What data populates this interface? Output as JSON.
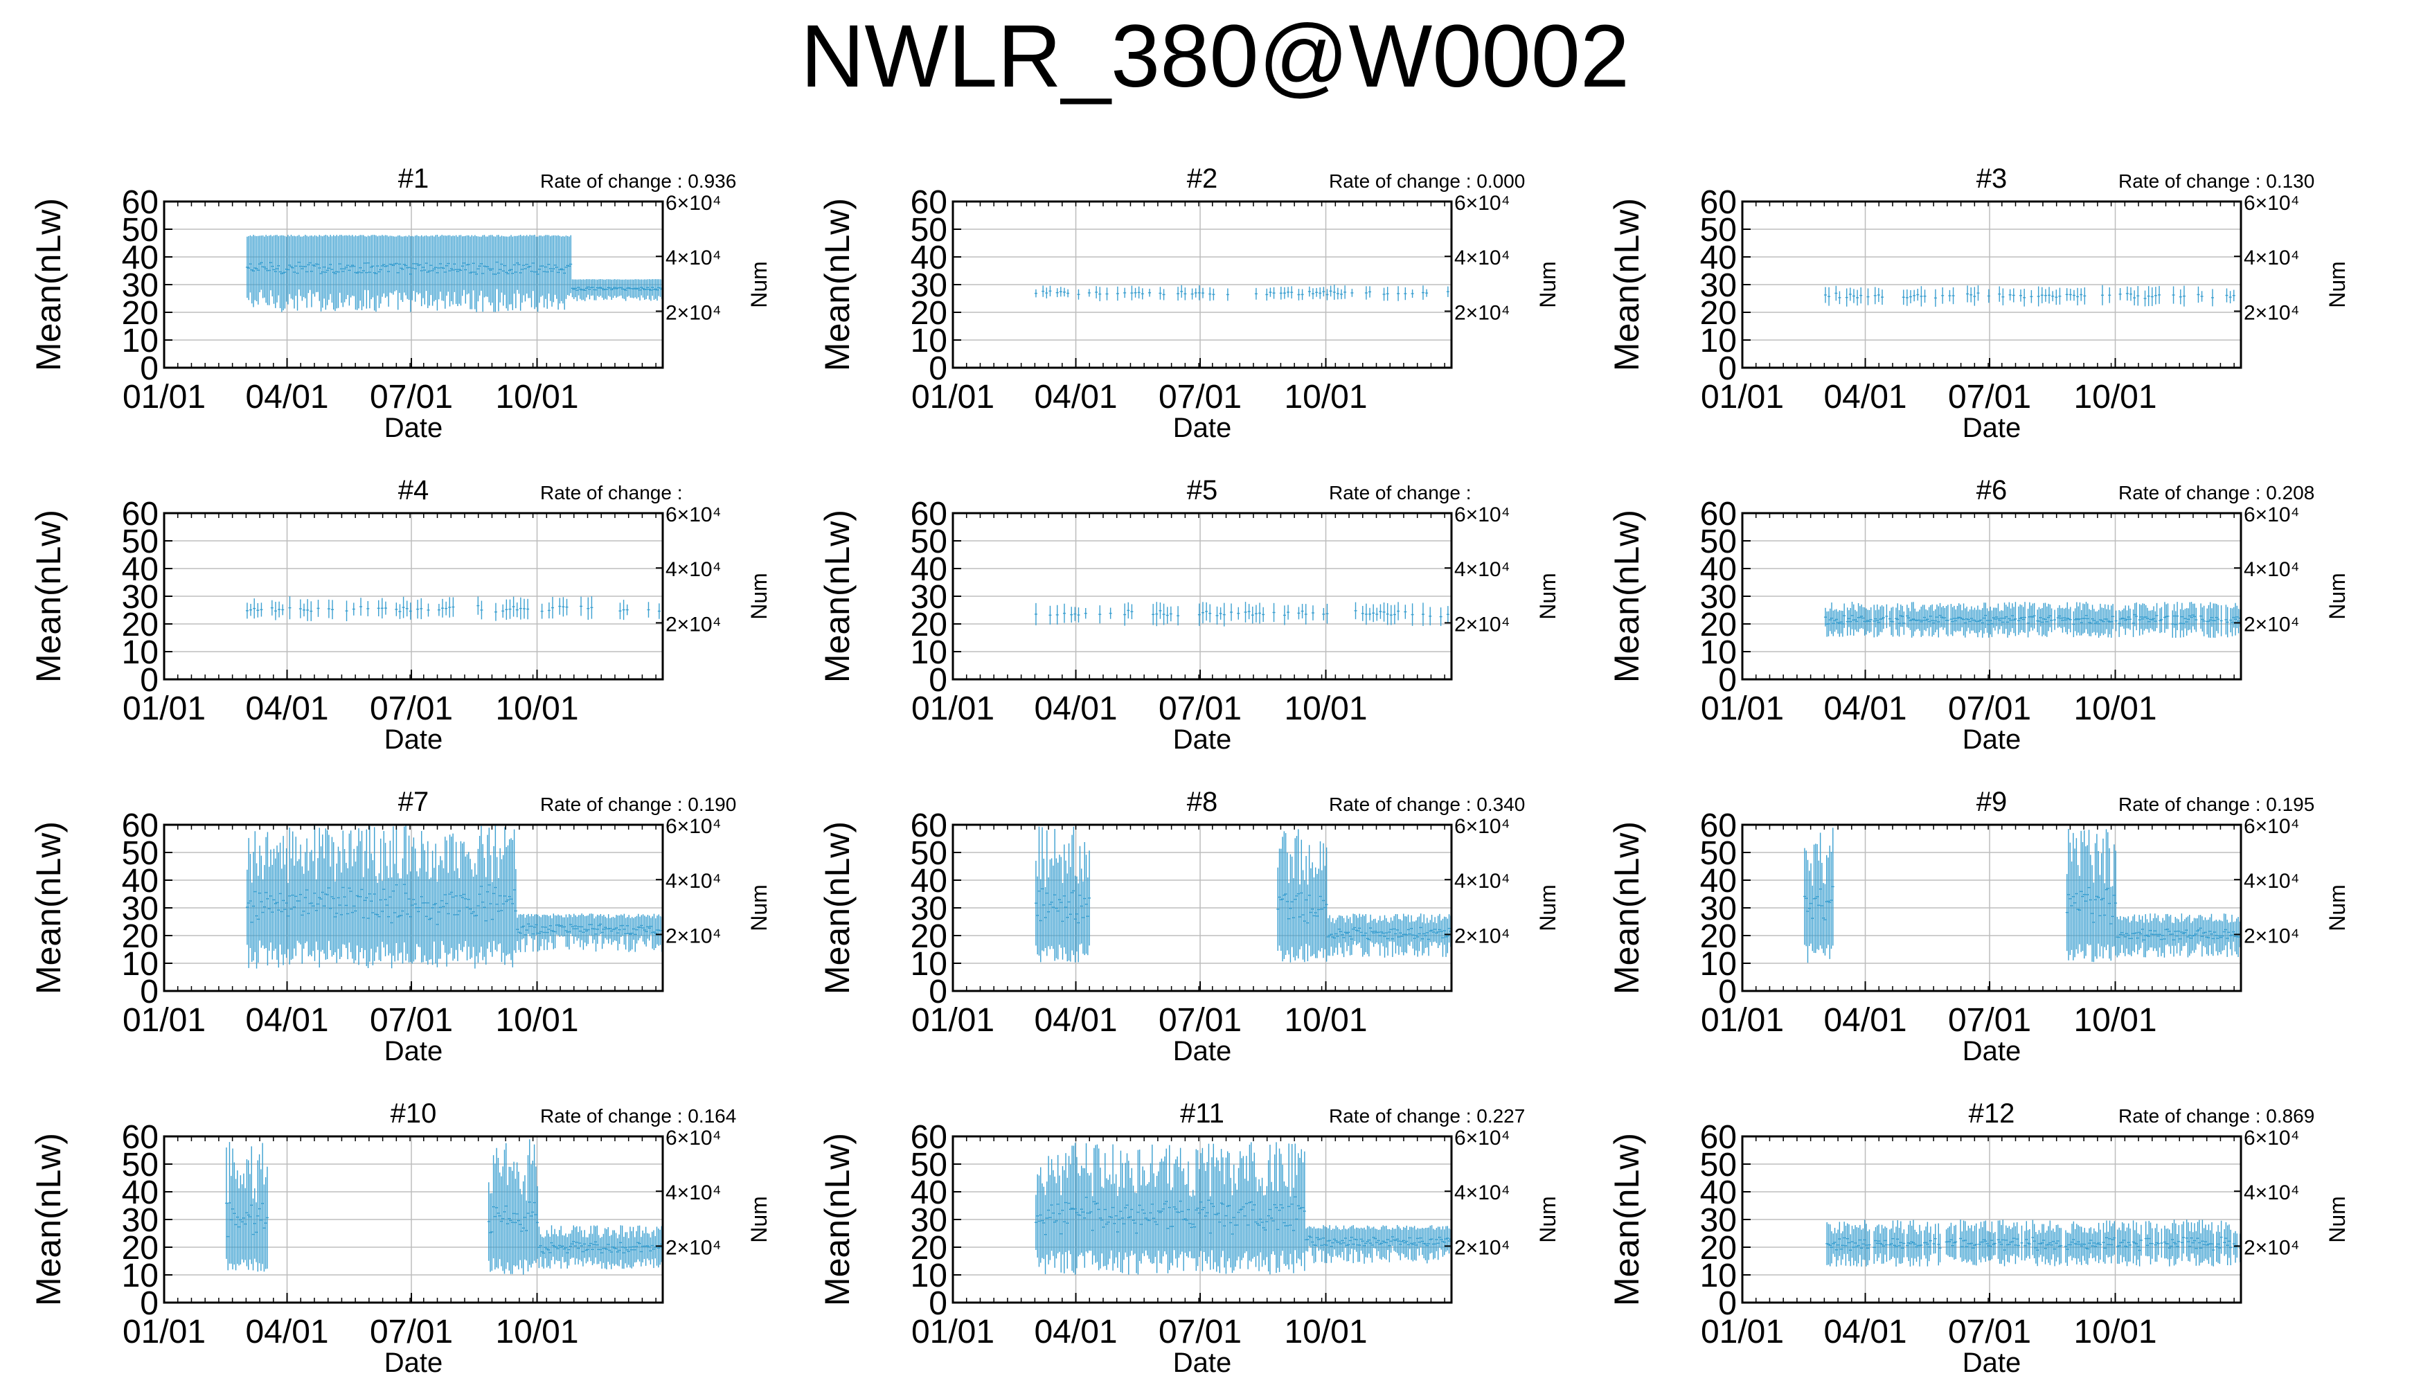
{
  "title": "NWLR_380@W0002",
  "chart_data": {
    "type": "line",
    "title": "NWLR_380@W0002",
    "x_axis_label": "Date",
    "y_axis_left_label": "Mean(nLw)",
    "y_axis_right_label": "Num",
    "x_ticks": [
      "01/01",
      "04/01",
      "07/01",
      "10/01"
    ],
    "y_ticks_left": [
      "0",
      "10",
      "20",
      "30",
      "40",
      "50",
      "60"
    ],
    "y_ticks_right": [
      "2×10⁴",
      "4×10⁴",
      "6×10⁴"
    ],
    "ylim_left": [
      0,
      60
    ],
    "xlim_day_of_year": [
      1,
      366
    ],
    "grid": true,
    "series_color": "#3a9fd0",
    "rate_label": "Rate of change :",
    "panels": [
      {
        "name": "#1",
        "rate": "0.936",
        "pattern": "dense-band",
        "band": [
          20,
          48
        ],
        "mean": 34,
        "start_month": 3.0,
        "end_month": 12.0,
        "late_band": [
          24,
          32
        ]
      },
      {
        "name": "#2",
        "rate": "0.000",
        "pattern": "sparse",
        "band": [
          24,
          30
        ],
        "mean": 27,
        "start_month": 3.0,
        "end_month": 12.0
      },
      {
        "name": "#3",
        "rate": "0.130",
        "pattern": "sparse",
        "band": [
          22,
          30
        ],
        "mean": 26,
        "start_month": 3.0,
        "end_month": 12.0
      },
      {
        "name": "#4",
        "rate": "",
        "pattern": "sparse",
        "band": [
          21,
          30
        ],
        "mean": 25,
        "start_month": 3.0,
        "end_month": 12.0
      },
      {
        "name": "#5",
        "rate": "",
        "pattern": "sparse",
        "band": [
          19,
          28
        ],
        "mean": 24,
        "start_month": 3.0,
        "end_month": 12.0
      },
      {
        "name": "#6",
        "rate": "0.208",
        "pattern": "medium",
        "band": [
          15,
          28
        ],
        "mean": 22,
        "start_month": 3.0,
        "end_month": 12.0
      },
      {
        "name": "#7",
        "rate": "0.190",
        "pattern": "noisy",
        "band": [
          8,
          60
        ],
        "mean": 25,
        "start_month": 3.0,
        "end_month": 12.0
      },
      {
        "name": "#8",
        "rate": "0.340",
        "pattern": "gap",
        "band": [
          10,
          60
        ],
        "mean": 22,
        "start_month": 3.0,
        "end_month": 12.0,
        "gap": [
          4.3,
          8.8
        ]
      },
      {
        "name": "#9",
        "rate": "0.195",
        "pattern": "gap",
        "band": [
          10,
          60
        ],
        "mean": 22,
        "start_month": 2.5,
        "end_month": 12.0,
        "gap": [
          3.2,
          8.8
        ]
      },
      {
        "name": "#10",
        "rate": "0.164",
        "pattern": "gap",
        "band": [
          10,
          60
        ],
        "mean": 20,
        "start_month": 2.5,
        "end_month": 12.0,
        "gap": [
          3.5,
          8.8
        ]
      },
      {
        "name": "#11",
        "rate": "0.227",
        "pattern": "noisy",
        "band": [
          10,
          58
        ],
        "mean": 25,
        "start_month": 3.0,
        "end_month": 12.0
      },
      {
        "name": "#12",
        "rate": "0.869",
        "pattern": "medium",
        "band": [
          13,
          30
        ],
        "mean": 21,
        "start_month": 3.0,
        "end_month": 12.0
      }
    ]
  }
}
